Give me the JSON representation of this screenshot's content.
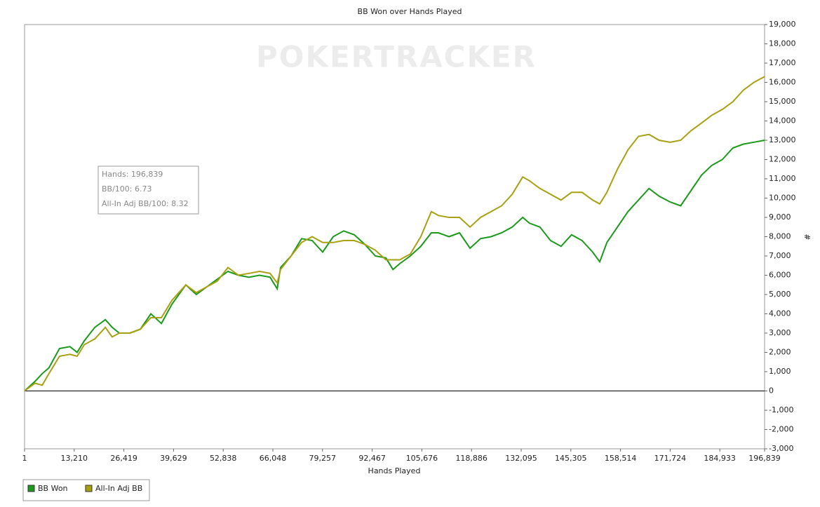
{
  "chart_data": {
    "type": "line",
    "title": "BB Won over Hands Played",
    "x_label": "Hands Played",
    "y_label": "#",
    "watermark": "POKERTRACKER",
    "info_box": [
      "Hands: 196,839",
      "BB/100: 6.73",
      "All-In Adj BB/100: 8.32"
    ],
    "x": [
      1,
      2800,
      4700,
      6500,
      9300,
      12100,
      14000,
      15900,
      18700,
      21500,
      23300,
      25200,
      28000,
      30800,
      33600,
      36400,
      39200,
      42900,
      45700,
      48500,
      51300,
      54100,
      56900,
      59700,
      62500,
      65300,
      67200,
      68100,
      70900,
      73700,
      76500,
      79300,
      82100,
      84900,
      87700,
      90500,
      93300,
      96100,
      98000,
      99800,
      102600,
      105400,
      108200,
      110100,
      112900,
      115700,
      118500,
      121300,
      124100,
      126900,
      129700,
      132500,
      134300,
      137100,
      139900,
      142700,
      145500,
      148300,
      151100,
      153000,
      154900,
      157700,
      160500,
      163300,
      166100,
      168800,
      171700,
      174500,
      177300,
      180100,
      182800,
      185600,
      188400,
      191200,
      194000,
      196839
    ],
    "series": [
      {
        "name": "BB Won",
        "color": "#1a9a1a",
        "values": [
          0,
          500,
          900,
          1200,
          2200,
          2300,
          2000,
          2600,
          3300,
          3700,
          3300,
          3000,
          3000,
          3200,
          4000,
          3500,
          4500,
          5500,
          5000,
          5400,
          5800,
          6200,
          6000,
          5900,
          6000,
          5900,
          5300,
          6400,
          7000,
          7900,
          7800,
          7200,
          8000,
          8300,
          8100,
          7600,
          7000,
          6900,
          6300,
          6600,
          7000,
          7500,
          8200,
          8200,
          8000,
          8200,
          7400,
          7900,
          8000,
          8200,
          8500,
          9000,
          8700,
          8500,
          7800,
          7500,
          8100,
          7800,
          7200,
          6700,
          7700,
          8500,
          9300,
          9900,
          10500,
          10100,
          9800,
          9600,
          10400,
          11200,
          11700,
          12000,
          12600,
          12800,
          12900,
          13000
        ]
      },
      {
        "name": "All-In Adj BB",
        "color": "#a8a010",
        "values": [
          0,
          400,
          300,
          900,
          1800,
          1900,
          1800,
          2400,
          2700,
          3300,
          2800,
          3000,
          3000,
          3200,
          3800,
          3800,
          4700,
          5500,
          5100,
          5400,
          5700,
          6400,
          6000,
          6100,
          6200,
          6100,
          5600,
          6300,
          7000,
          7700,
          8000,
          7700,
          7700,
          7800,
          7800,
          7600,
          7300,
          6800,
          6800,
          6800,
          7100,
          8000,
          9300,
          9100,
          9000,
          9000,
          8500,
          9000,
          9300,
          9600,
          10200,
          11100,
          10900,
          10500,
          10200,
          9900,
          10300,
          10300,
          9900,
          9700,
          10300,
          11500,
          12500,
          13200,
          13300,
          13000,
          12900,
          13000,
          13500,
          13900,
          14300,
          14600,
          15000,
          15600,
          16000,
          16300
        ]
      }
    ],
    "xlim": [
      1,
      196839
    ],
    "xticks": [
      1,
      {
        "value": 13210,
        "label": "13,210"
      },
      {
        "value": 26419,
        "label": "26,419"
      },
      {
        "value": 39629,
        "label": "39,629"
      },
      {
        "value": 52838,
        "label": "52,838"
      },
      {
        "value": 66048,
        "label": "66,048"
      },
      {
        "value": 79257,
        "label": "79,257"
      },
      {
        "value": 92467,
        "label": "92,467"
      },
      {
        "value": 105676,
        "label": "105,676"
      },
      {
        "value": 118886,
        "label": "118,886"
      },
      {
        "value": 132095,
        "label": "132,095"
      },
      {
        "value": 145305,
        "label": "145,305"
      },
      {
        "value": 158514,
        "label": "158,514"
      },
      {
        "value": 171724,
        "label": "171,724"
      },
      {
        "value": 184933,
        "label": "184,933"
      },
      {
        "value": 196839,
        "label": "196,839"
      }
    ],
    "ylim": [
      -3000,
      19000
    ],
    "yticks": [
      {
        "value": -3000,
        "label": "-3,000"
      },
      {
        "value": -2000,
        "label": "-2,000"
      },
      {
        "value": -1000,
        "label": "-1,000"
      },
      0,
      {
        "value": 1000,
        "label": "1,000"
      },
      {
        "value": 2000,
        "label": "2,000"
      },
      {
        "value": 3000,
        "label": "3,000"
      },
      {
        "value": 4000,
        "label": "4,000"
      },
      {
        "value": 5000,
        "label": "5,000"
      },
      {
        "value": 6000,
        "label": "6,000"
      },
      {
        "value": 7000,
        "label": "7,000"
      },
      {
        "value": 8000,
        "label": "8,000"
      },
      {
        "value": 9000,
        "label": "9,000"
      },
      {
        "value": 10000,
        "label": "10,000"
      },
      {
        "value": 11000,
        "label": "11,000"
      },
      {
        "value": 12000,
        "label": "12,000"
      },
      {
        "value": 13000,
        "label": "13,000"
      },
      {
        "value": 14000,
        "label": "14,000"
      },
      {
        "value": 15000,
        "label": "15,000"
      },
      {
        "value": 16000,
        "label": "16,000"
      },
      {
        "value": 17000,
        "label": "17,000"
      },
      {
        "value": 18000,
        "label": "18,000"
      },
      {
        "value": 19000,
        "label": "19,000"
      }
    ],
    "grid": false,
    "zero_line": true,
    "y_axis_side": "right",
    "legend": "bottom-left"
  }
}
